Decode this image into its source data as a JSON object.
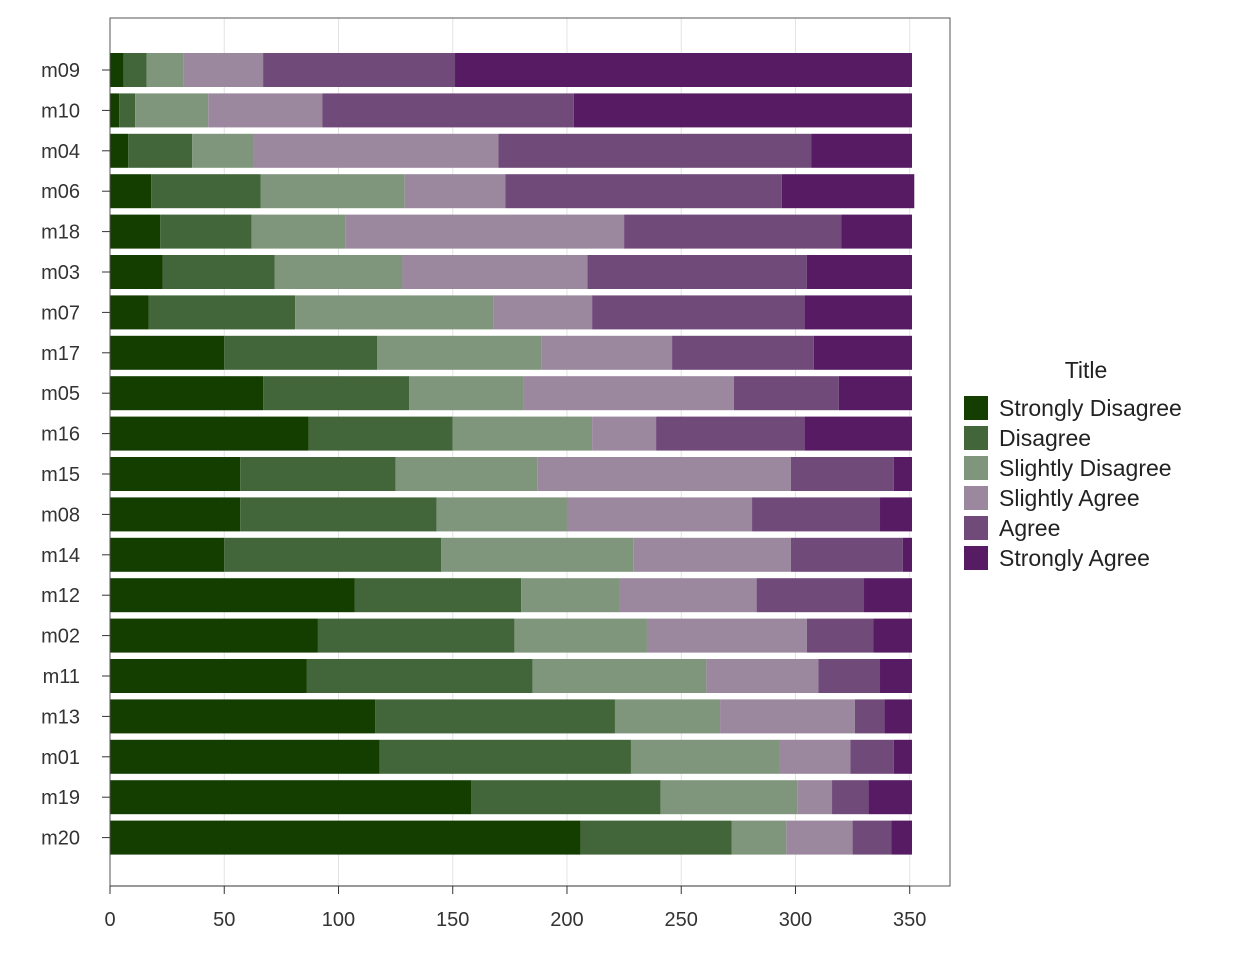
{
  "chart_data": {
    "type": "bar",
    "orientation": "horizontal",
    "stacked": true,
    "title": "",
    "xlabel": "",
    "ylabel": "",
    "xlim": [
      0,
      368
    ],
    "xticks": [
      0,
      50,
      100,
      150,
      200,
      250,
      300,
      350
    ],
    "grid": true,
    "legend_title": "Title",
    "legend_position": "right",
    "categories": [
      "m09",
      "m10",
      "m04",
      "m06",
      "m18",
      "m03",
      "m07",
      "m17",
      "m05",
      "m16",
      "m15",
      "m08",
      "m14",
      "m12",
      "m02",
      "m11",
      "m13",
      "m01",
      "m19",
      "m20"
    ],
    "series": [
      {
        "name": "Strongly Disagree",
        "color": "#143d00",
        "values": [
          6,
          4,
          8,
          18,
          22,
          23,
          17,
          50,
          67,
          87,
          57,
          57,
          50,
          107,
          91,
          86,
          116,
          118,
          158,
          206
        ]
      },
      {
        "name": "Disagree",
        "color": "#42663a",
        "values": [
          10,
          7,
          28,
          48,
          40,
          49,
          64,
          67,
          64,
          63,
          68,
          86,
          95,
          73,
          86,
          99,
          105,
          110,
          83,
          66
        ]
      },
      {
        "name": "Slightly Disagree",
        "color": "#80967c",
        "values": [
          16,
          32,
          27,
          63,
          41,
          56,
          87,
          72,
          50,
          61,
          62,
          57,
          84,
          43,
          58,
          76,
          46,
          65,
          60,
          24
        ]
      },
      {
        "name": "Slightly Agree",
        "color": "#9b879e",
        "values": [
          35,
          50,
          107,
          44,
          122,
          81,
          43,
          57,
          92,
          28,
          111,
          81,
          69,
          60,
          70,
          49,
          59,
          31,
          15,
          29
        ]
      },
      {
        "name": "Agree",
        "color": "#704b7a",
        "values": [
          84,
          110,
          137,
          121,
          95,
          96,
          93,
          62,
          46,
          65,
          45,
          56,
          49,
          47,
          29,
          27,
          13,
          19,
          16,
          17
        ]
      },
      {
        "name": "Strongly Agree",
        "color": "#561b63",
        "values": [
          200,
          148,
          44,
          58,
          31,
          46,
          47,
          43,
          32,
          47,
          8,
          14,
          4,
          21,
          17,
          14,
          12,
          8,
          19,
          9
        ]
      }
    ]
  }
}
